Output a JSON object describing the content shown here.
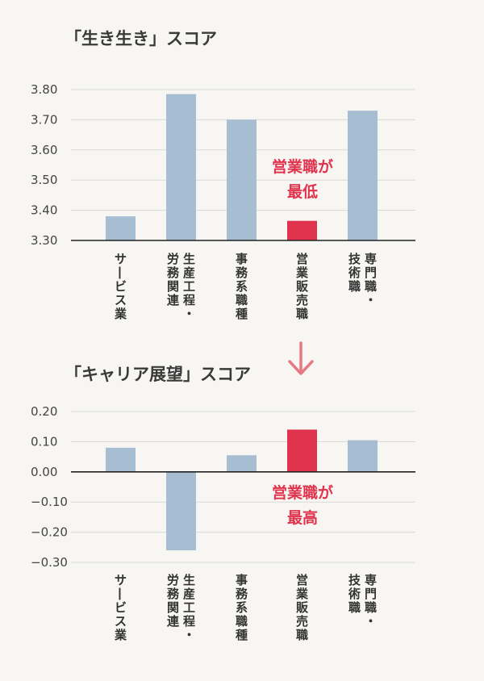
{
  "chart_data": [
    {
      "type": "bar",
      "title": "「生き生き」スコア",
      "categories": [
        [
          "サービス業"
        ],
        [
          "生産工程・",
          "労務関連"
        ],
        [
          "事務系職種"
        ],
        [
          "営業販売職"
        ],
        [
          "専門職・",
          "技術職"
        ]
      ],
      "values": [
        3.38,
        3.785,
        3.7,
        3.365,
        3.73
      ],
      "yticks": [
        "3.30",
        "3.40",
        "3.50",
        "3.60",
        "3.70",
        "3.80"
      ],
      "ylim": [
        3.3,
        3.8
      ],
      "highlight_index": 3,
      "annotation": [
        "営業職が",
        "最低"
      ],
      "grid": true
    },
    {
      "type": "bar",
      "title": "「キャリア展望」スコア",
      "categories": [
        [
          "サービス業"
        ],
        [
          "生産工程・",
          "労務関連"
        ],
        [
          "事務系職種"
        ],
        [
          "営業販売職"
        ],
        [
          "専門職・",
          "技術職"
        ]
      ],
      "values": [
        0.08,
        -0.26,
        0.055,
        0.14,
        0.105
      ],
      "yticks": [
        "0.20",
        "0.10",
        "0.00",
        "−0.10",
        "−0.20",
        "−0.30"
      ],
      "ylim": [
        -0.3,
        0.2
      ],
      "highlight_index": 3,
      "annotation": [
        "営業職が",
        "最高"
      ],
      "grid": true
    }
  ],
  "colors": {
    "bar": "#a7bdd1",
    "highlight": "#e0344e",
    "arrow": "#e57a86",
    "annotation": "#e0344e"
  },
  "icons": {
    "arrow": "down-arrow-icon"
  }
}
